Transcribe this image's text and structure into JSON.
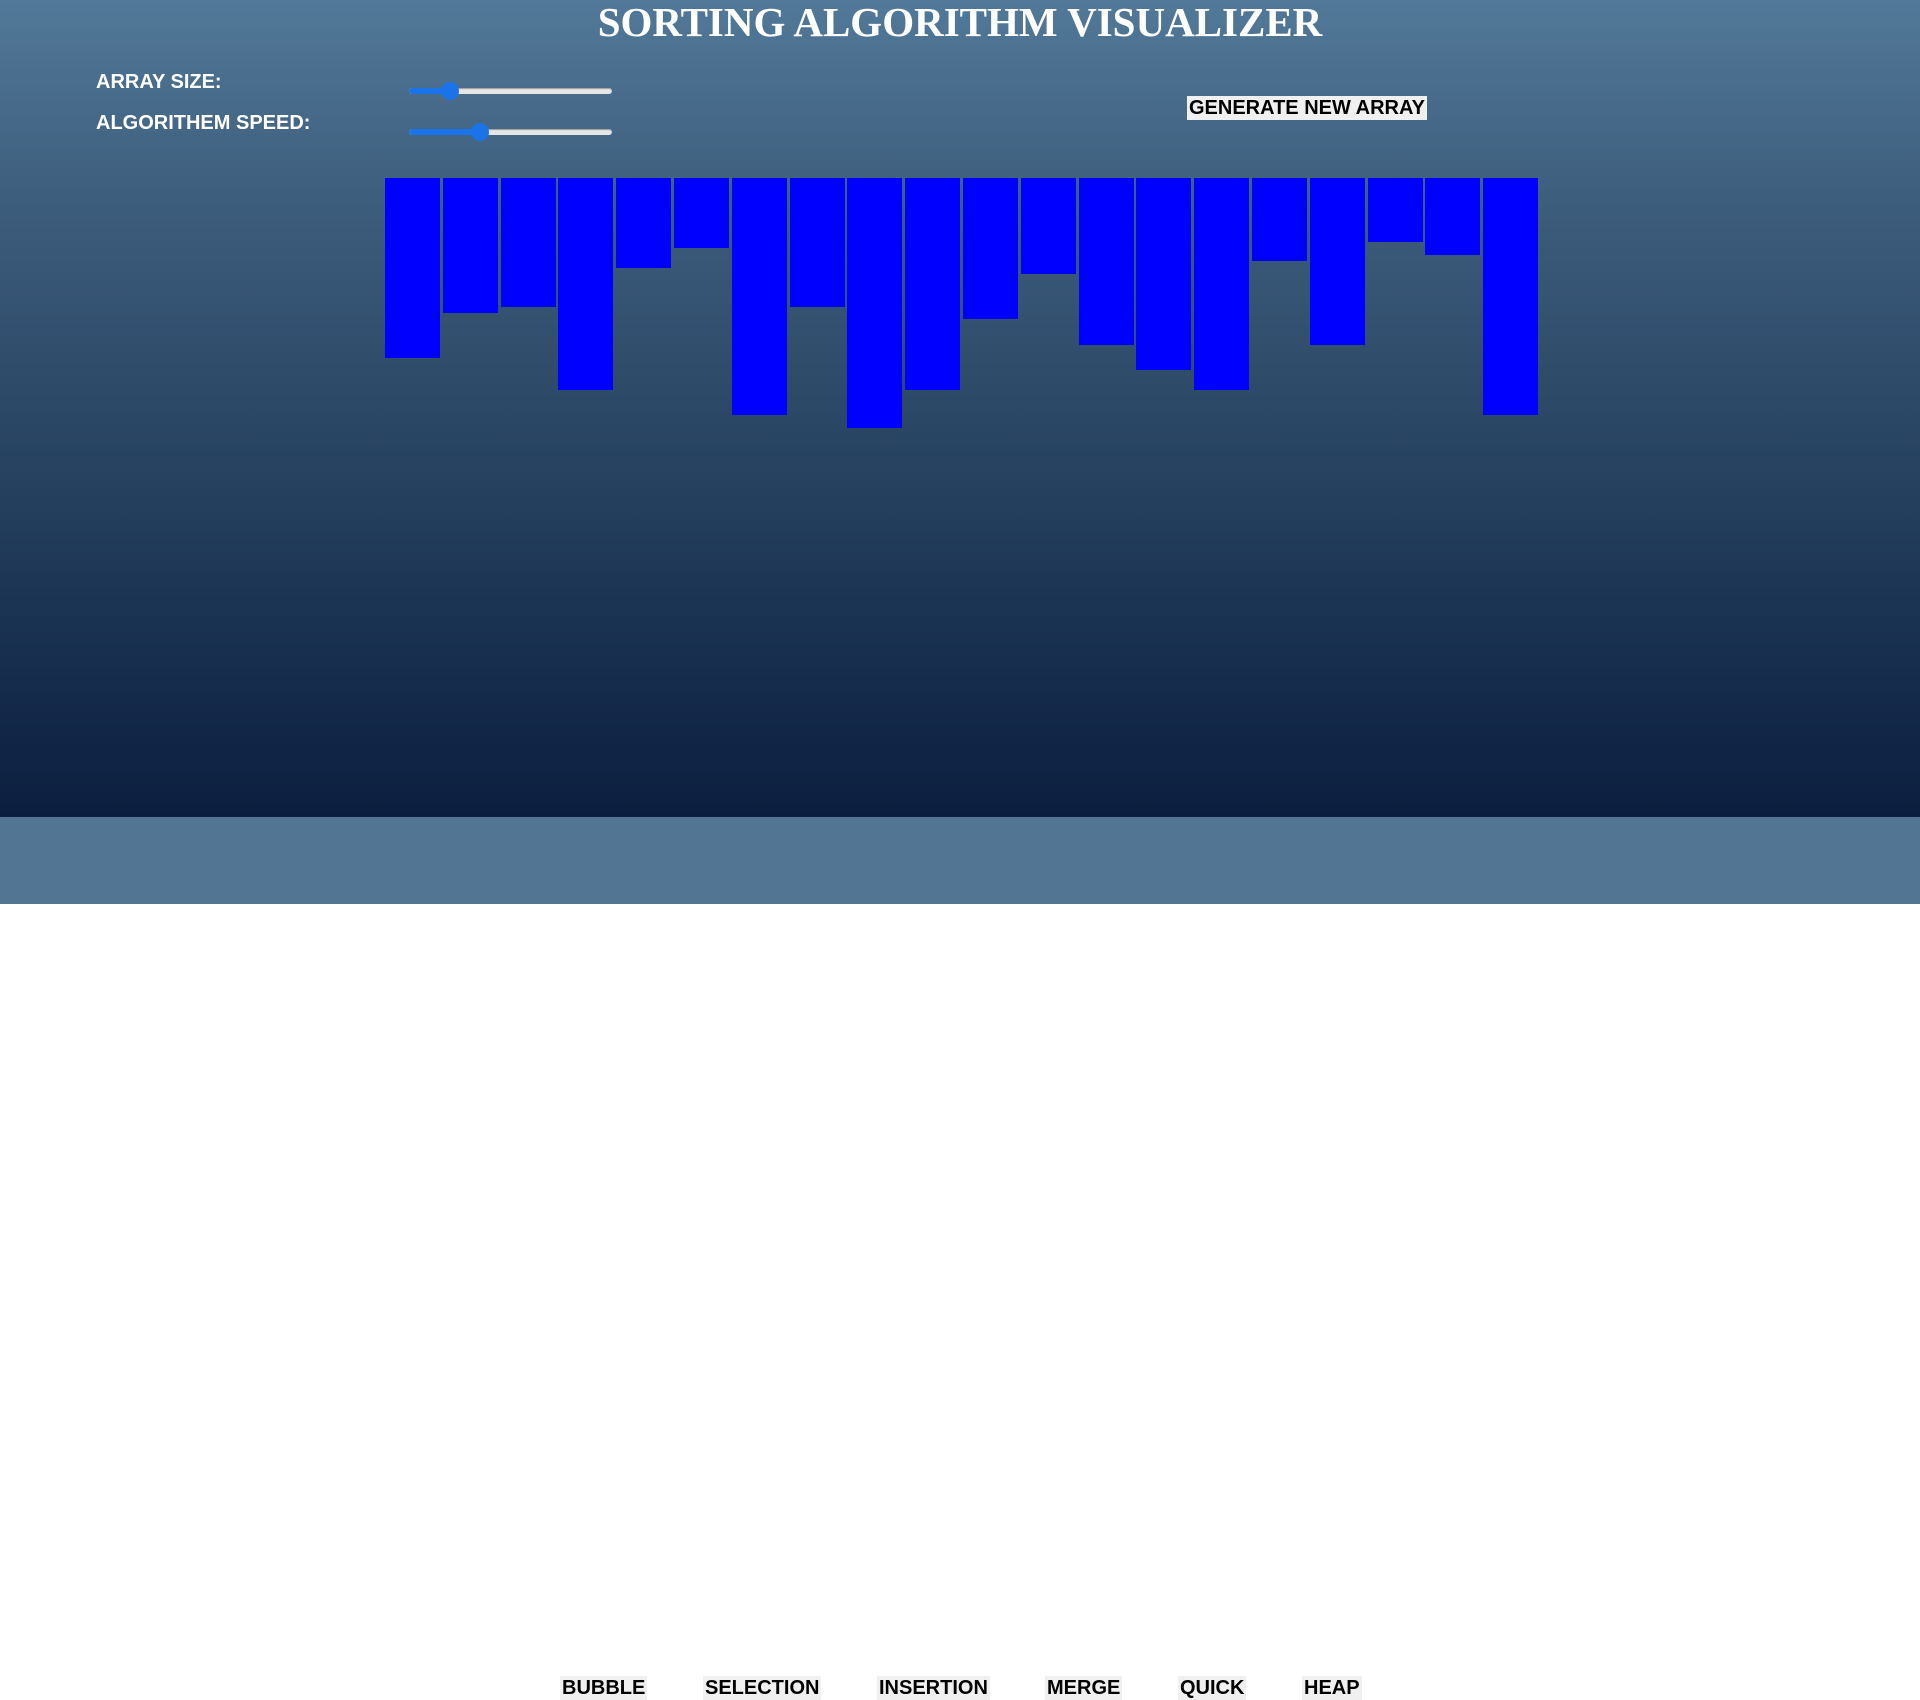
{
  "title": "SORTING ALGORITHM VISUALIZER",
  "controls": {
    "array_size_label": "ARRAY SIZE:",
    "array_size_fraction": 0.2,
    "speed_label": "ALGORITHEM SPEED:",
    "speed_fraction": 0.35,
    "generate_label": "GENERATE NEW ARRAY"
  },
  "bars": {
    "color": "#0000ff",
    "values": [
      180,
      135,
      129,
      212,
      90,
      70,
      237,
      129,
      250,
      212,
      141,
      96,
      167,
      192,
      212,
      83,
      167,
      64,
      77,
      237
    ]
  },
  "algorithms": [
    "BUBBLE",
    "SELECTION",
    "INSERTION",
    "MERGE",
    "QUICK",
    "HEAP"
  ]
}
